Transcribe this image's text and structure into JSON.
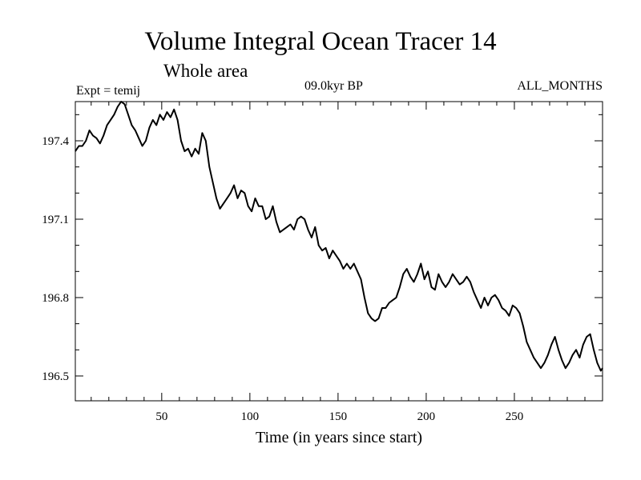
{
  "chart_data": {
    "type": "line",
    "title": "Volume Integral Ocean Tracer 14",
    "subtitle": "Whole area",
    "left_label": "Expt = temij",
    "center_label": "09.0kyr BP",
    "right_label": "ALL_MONTHS",
    "xlabel": "Time (in years since start)",
    "ylabel": "",
    "xlim": [
      1,
      300
    ],
    "ylim": [
      196.405,
      197.55
    ],
    "xticks": [
      50,
      100,
      150,
      200,
      250
    ],
    "yticks": [
      196.5,
      196.8,
      197.1,
      197.4
    ],
    "ytick_labels": [
      "196.5",
      "196.8",
      "197.1",
      "197.4"
    ],
    "grid": false,
    "legend": "none",
    "line_color": "#000000",
    "series": [
      {
        "x": [
          1,
          3,
          5,
          7,
          9,
          11,
          13,
          15,
          17,
          19,
          21,
          23,
          25,
          27,
          29,
          31,
          33,
          35,
          37,
          39,
          41,
          43,
          45,
          47,
          49,
          51,
          53,
          55,
          57,
          59,
          61,
          63,
          65,
          67,
          69,
          71,
          73,
          75,
          77,
          79,
          81,
          83,
          85,
          87,
          89,
          91,
          93,
          95,
          97,
          99,
          101,
          103,
          105,
          107,
          109,
          111,
          113,
          115,
          117,
          119,
          121,
          123,
          125,
          127,
          129,
          131,
          133,
          135,
          137,
          139,
          141,
          143,
          145,
          147,
          149,
          151,
          153,
          155,
          157,
          159,
          161,
          163,
          165,
          167,
          169,
          171,
          173,
          175,
          177,
          179,
          181,
          183,
          185,
          187,
          189,
          191,
          193,
          195,
          197,
          199,
          201,
          203,
          205,
          207,
          209,
          211,
          213,
          215,
          217,
          219,
          221,
          223,
          225,
          227,
          229,
          231,
          233,
          235,
          237,
          239,
          241,
          243,
          245,
          247,
          249,
          251,
          253,
          255,
          257,
          259,
          261,
          263,
          265,
          267,
          269,
          271,
          273,
          275,
          277,
          279,
          281,
          283,
          285,
          287,
          289,
          291,
          293,
          295,
          297,
          299,
          300
        ],
        "values": [
          197.36,
          197.38,
          197.38,
          197.4,
          197.44,
          197.42,
          197.41,
          197.39,
          197.42,
          197.46,
          197.48,
          197.5,
          197.53,
          197.55,
          197.54,
          197.5,
          197.46,
          197.44,
          197.41,
          197.38,
          197.4,
          197.45,
          197.48,
          197.46,
          197.5,
          197.48,
          197.51,
          197.49,
          197.52,
          197.48,
          197.4,
          197.36,
          197.37,
          197.34,
          197.37,
          197.35,
          197.43,
          197.4,
          197.3,
          197.24,
          197.18,
          197.14,
          197.16,
          197.18,
          197.2,
          197.23,
          197.18,
          197.21,
          197.2,
          197.15,
          197.13,
          197.18,
          197.15,
          197.15,
          197.1,
          197.11,
          197.15,
          197.09,
          197.05,
          197.06,
          197.07,
          197.08,
          197.06,
          197.1,
          197.11,
          197.1,
          197.06,
          197.03,
          197.07,
          197.0,
          196.98,
          196.99,
          196.95,
          196.98,
          196.96,
          196.94,
          196.91,
          196.93,
          196.91,
          196.93,
          196.9,
          196.87,
          196.8,
          196.74,
          196.72,
          196.71,
          196.72,
          196.76,
          196.76,
          196.78,
          196.79,
          196.8,
          196.84,
          196.89,
          196.91,
          196.88,
          196.86,
          196.89,
          196.93,
          196.87,
          196.9,
          196.84,
          196.83,
          196.89,
          196.86,
          196.84,
          196.86,
          196.89,
          196.87,
          196.85,
          196.86,
          196.88,
          196.86,
          196.82,
          196.79,
          196.76,
          196.8,
          196.77,
          196.8,
          196.81,
          196.79,
          196.76,
          196.75,
          196.73,
          196.77,
          196.76,
          196.74,
          196.69,
          196.63,
          196.6,
          196.57,
          196.55,
          196.53,
          196.55,
          196.58,
          196.62,
          196.65,
          196.6,
          196.56,
          196.53,
          196.55,
          196.58,
          196.6,
          196.57,
          196.62,
          196.65,
          196.66,
          196.6,
          196.55,
          196.52,
          196.53
        ]
      }
    ]
  }
}
